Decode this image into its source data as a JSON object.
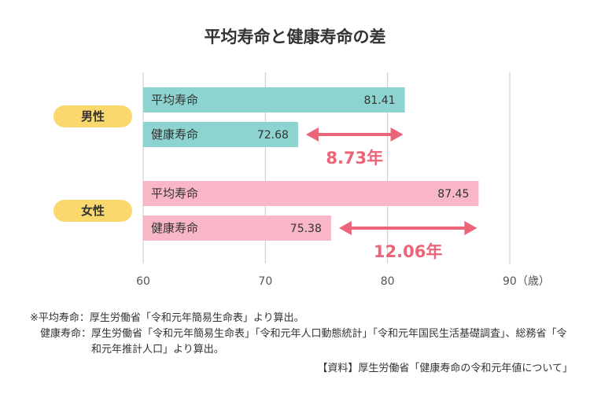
{
  "chart_data": {
    "type": "bar",
    "orientation": "horizontal",
    "title": "平均寿命と健康寿命の差",
    "x_ticks": [
      "60",
      "70",
      "80",
      "90"
    ],
    "x_unit": "（歳）",
    "xlim": [
      60,
      90
    ],
    "grid": true,
    "groups": [
      {
        "label": "男性",
        "bars": [
          {
            "label": "平均寿命",
            "value": 81.41,
            "value_label": "81.41"
          },
          {
            "label": "健康寿命",
            "value": 72.68,
            "value_label": "72.68"
          }
        ],
        "difference_label": "8.73年"
      },
      {
        "label": "女性",
        "bars": [
          {
            "label": "平均寿命",
            "value": 87.45,
            "value_label": "87.45"
          },
          {
            "label": "健康寿命",
            "value": 75.38,
            "value_label": "75.38"
          }
        ],
        "difference_label": "12.06年"
      }
    ],
    "colors": {
      "male_bar": "#8dd3d0",
      "female_bar": "#f9b6c6",
      "group_badge": "#fbd86e",
      "difference": "#ec6478",
      "grid": "#c8c8c8"
    }
  },
  "notes": {
    "line1_head": "※平均寿命：",
    "line1_body": "厚生労働省「令和元年簡易生命表」より算出。",
    "line2_head": "健康寿命：",
    "line2_body": "厚生労働省「令和元年簡易生命表」「令和元年人口動態統計」「令和元年国民生活基礎調査」、総務省「令和元年推計人口」より算出。",
    "source": "【資料】厚生労働省「健康寿命の令和元年値について」"
  }
}
